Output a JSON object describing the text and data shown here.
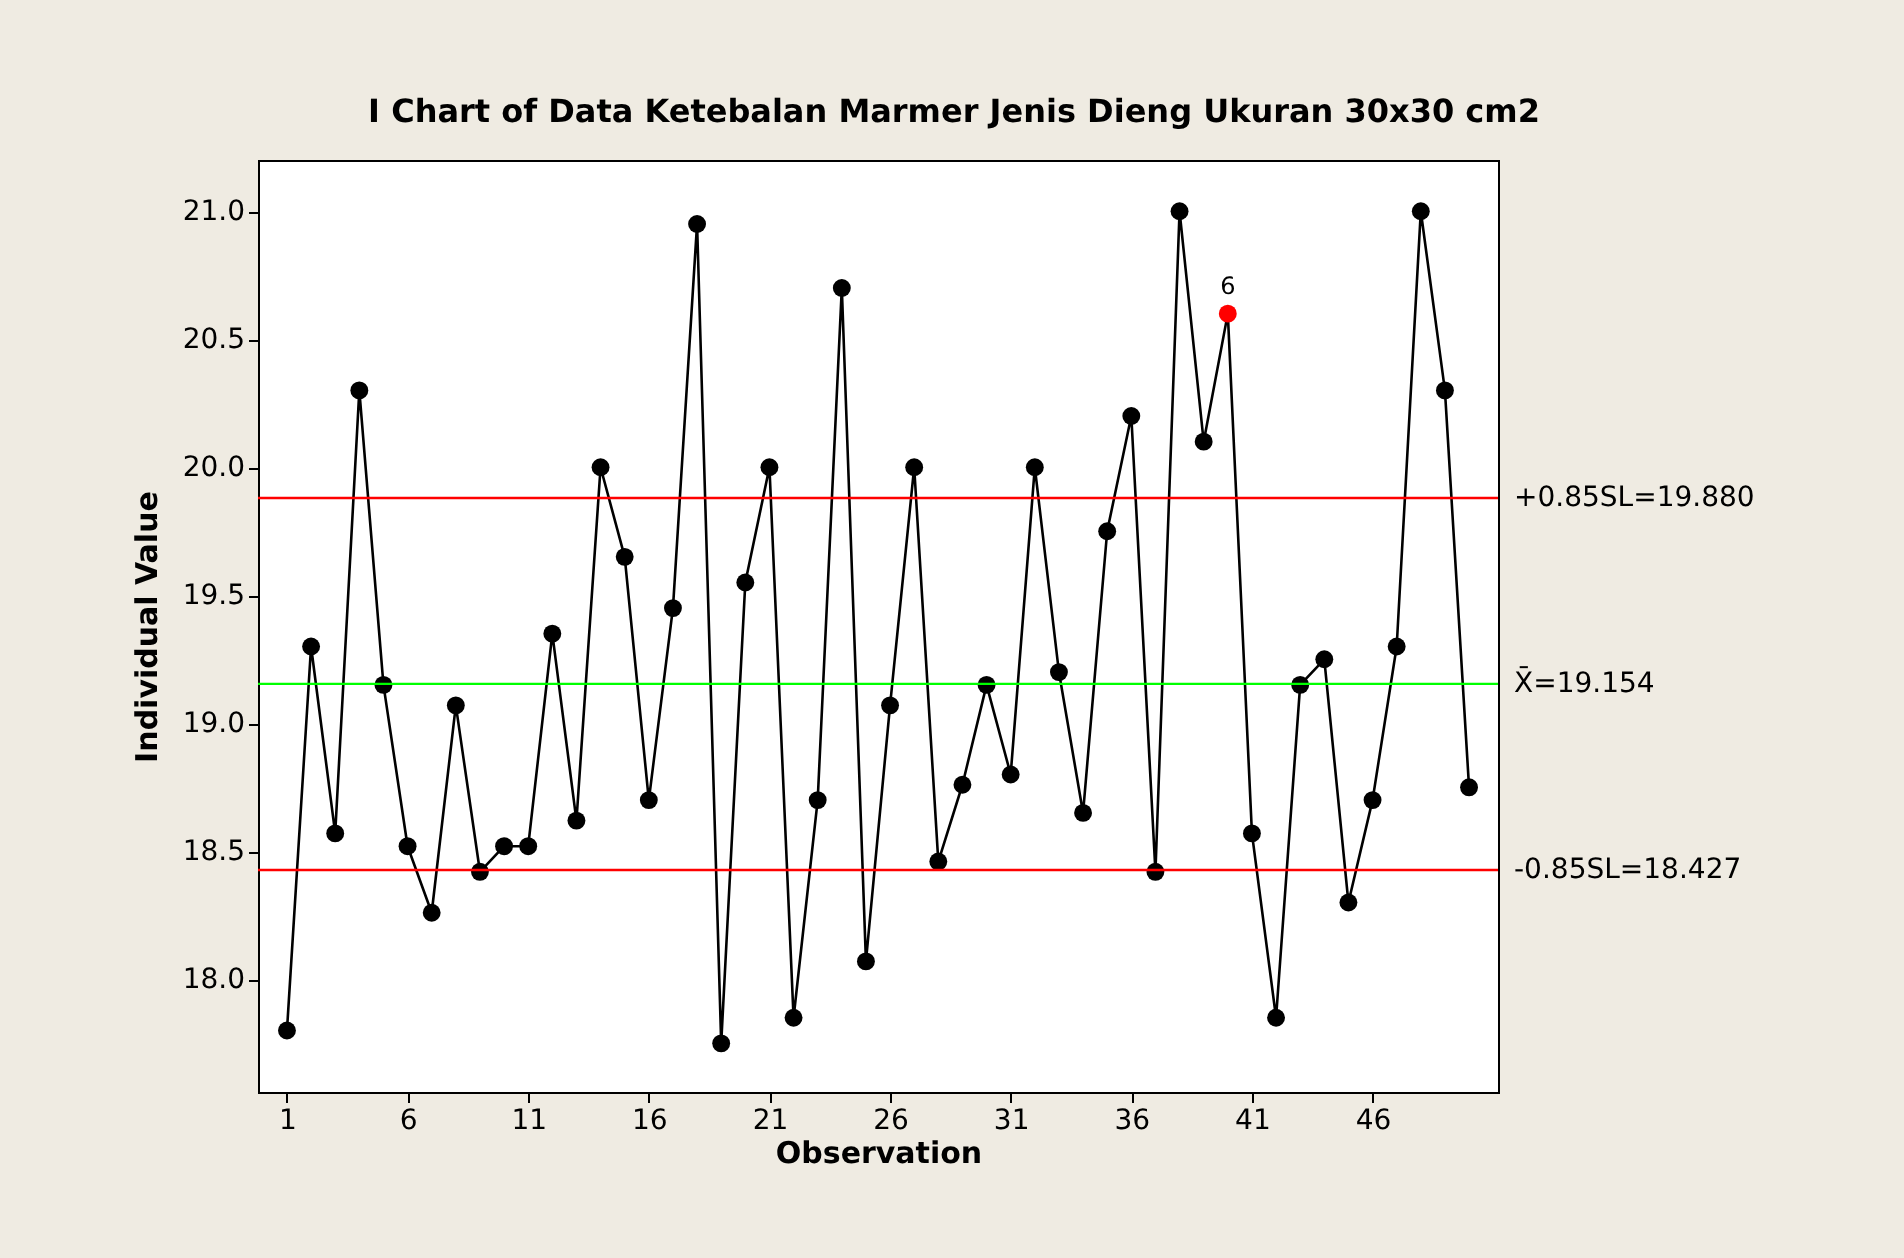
{
  "chart_data": {
    "type": "line",
    "title": "I Chart of Data Ketebalan Marmer Jenis Dieng Ukuran 30x30 cm2",
    "xlabel": "Observation",
    "ylabel": "Individual Value",
    "x": [
      1,
      2,
      3,
      4,
      5,
      6,
      7,
      8,
      9,
      10,
      11,
      12,
      13,
      14,
      15,
      16,
      17,
      18,
      19,
      20,
      21,
      22,
      23,
      24,
      25,
      26,
      27,
      28,
      29,
      30,
      31,
      32,
      33,
      34,
      35,
      36,
      37,
      38,
      39,
      40,
      41,
      42,
      43,
      44,
      45,
      46,
      47,
      48,
      49,
      50
    ],
    "series": [
      {
        "color": "#000000",
        "marker": "circle",
        "values": [
          17.8,
          19.3,
          18.57,
          20.3,
          19.15,
          18.52,
          18.26,
          19.07,
          18.42,
          18.52,
          18.52,
          19.35,
          18.62,
          20.0,
          19.65,
          18.7,
          19.45,
          20.95,
          17.75,
          19.55,
          20.0,
          17.85,
          18.7,
          20.7,
          18.07,
          19.07,
          20.0,
          18.46,
          18.76,
          19.15,
          18.8,
          20.0,
          19.2,
          18.65,
          19.75,
          20.2,
          18.42,
          21.0,
          20.1,
          20.6,
          18.57,
          17.85,
          19.15,
          19.25,
          18.3,
          18.7,
          19.3,
          21.0,
          20.3,
          18.75
        ],
        "colors": [
          "#000000",
          "#000000",
          "#000000",
          "#000000",
          "#000000",
          "#000000",
          "#000000",
          "#000000",
          "#000000",
          "#000000",
          "#000000",
          "#000000",
          "#000000",
          "#000000",
          "#000000",
          "#000000",
          "#000000",
          "#000000",
          "#000000",
          "#000000",
          "#000000",
          "#000000",
          "#000000",
          "#000000",
          "#000000",
          "#000000",
          "#000000",
          "#000000",
          "#000000",
          "#000000",
          "#000000",
          "#000000",
          "#000000",
          "#000000",
          "#000000",
          "#000000",
          "#000000",
          "#000000",
          "#000000",
          "#ff0000",
          "#000000",
          "#000000",
          "#000000",
          "#000000",
          "#000000",
          "#000000",
          "#000000",
          "#000000",
          "#000000",
          "#000000"
        ]
      }
    ],
    "xlim": [
      -0.2,
      51.2
    ],
    "xticks": [
      1,
      6,
      11,
      16,
      21,
      26,
      31,
      36,
      41,
      46
    ],
    "ylim": [
      17.56,
      21.2
    ],
    "yticks": [
      {
        "value": 18,
        "label": "18.0"
      },
      18.5,
      {
        "value": 19,
        "label": "19.0"
      },
      19.5,
      {
        "value": 20,
        "label": "20.0"
      },
      20.5,
      {
        "value": 21,
        "label": "21.0"
      }
    ],
    "ref_lines": [
      {
        "axis": "y",
        "value": 19.88,
        "label": "+0.85SL=19.880",
        "color": "#ff0000"
      },
      {
        "axis": "y",
        "value": 19.154,
        "label": "X̄=19.154",
        "color": "#00ff00"
      },
      {
        "axis": "y",
        "value": 18.427,
        "label": "-0.85SL=18.427",
        "color": "#ff0000"
      }
    ],
    "annotations": [
      {
        "text": "6",
        "x": 40,
        "y": 20.6
      }
    ],
    "grid": false
  }
}
